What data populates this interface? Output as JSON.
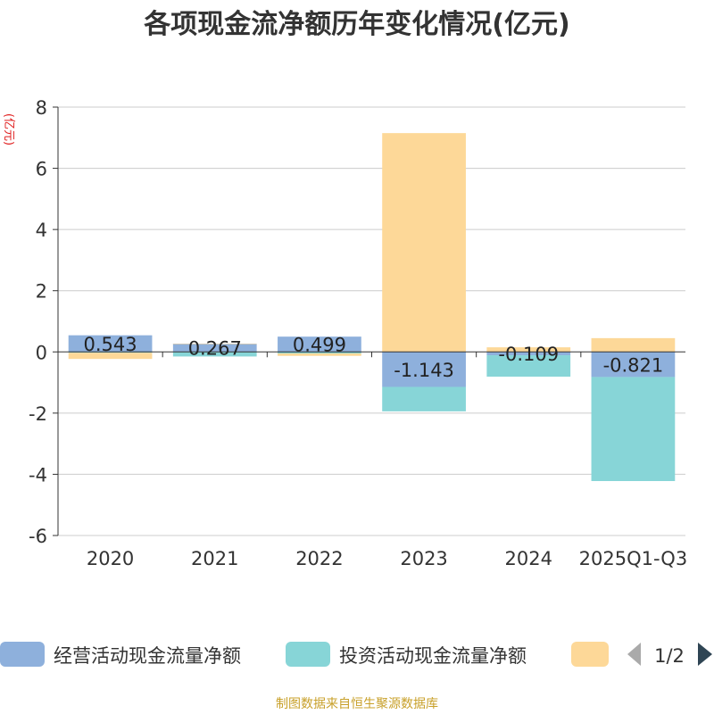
{
  "chart_data": {
    "type": "bar",
    "stacked": true,
    "title": "各项现金流净额历年变化情况(亿元)",
    "ylabel": "(亿元)",
    "xlabel": "",
    "categories": [
      "2020",
      "2021",
      "2022",
      "2023",
      "2024",
      "2025Q1-Q3"
    ],
    "ylim": [
      -6,
      8
    ],
    "yticks": [
      8,
      6,
      4,
      2,
      0,
      -2,
      -4,
      -6
    ],
    "grid": true,
    "series": [
      {
        "name": "经营活动现金流量净额",
        "color": "#8eb0dc",
        "values": [
          0.543,
          0.267,
          0.499,
          -1.143,
          -0.109,
          -0.821
        ]
      },
      {
        "name": "投资活动现金流量净额",
        "color": "#87d5d7",
        "values": [
          -0.03,
          -0.15,
          -0.05,
          -0.8,
          -0.7,
          -3.4
        ]
      },
      {
        "name": "",
        "color": "#fdd898",
        "values": [
          -0.2,
          0.0,
          -0.08,
          7.15,
          0.15,
          0.45
        ]
      }
    ],
    "data_labels": [
      "0.543",
      "0.267",
      "0.499",
      "-1.143",
      "-0.109",
      "-0.821"
    ],
    "legend_position": "bottom",
    "legend_page": "1/2"
  },
  "footer": {
    "source": "制图数据来自恒生聚源数据库"
  }
}
